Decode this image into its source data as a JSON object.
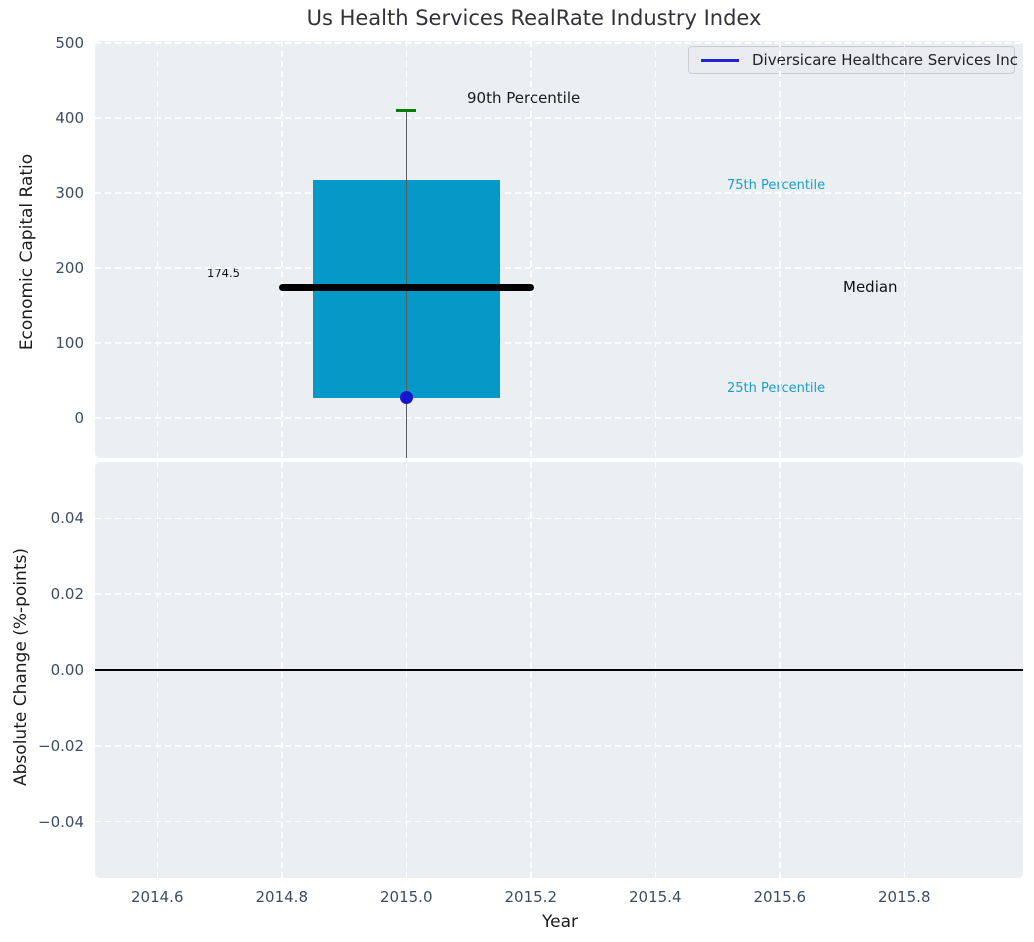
{
  "title": "Us Health Services RealRate Industry Index",
  "legend": {
    "label": "Diversicare Healthcare Services Inc"
  },
  "axes": {
    "top_ylabel": "Economic Capital Ratio",
    "bottom_ylabel": "Absolute Change (%-points)",
    "xlabel": "Year"
  },
  "annotations": {
    "p90": "90th Percentile",
    "p75": "75th Percentile",
    "p25": "25th Percentile",
    "median": "Median",
    "median_value": "174.5"
  },
  "colors": {
    "plot_bg": "#eceff1",
    "grid": "#ffffff",
    "tick_label": "#3d4c63",
    "box_fill": "#0599c8",
    "median_line": "#000000",
    "whisker": "#5c5c5c",
    "cap_90th": "#007d00",
    "company_dot": "#1515d0",
    "legend_line": "#2323d6",
    "percentile_text": "#18a0cc",
    "zero_line": "#000000"
  },
  "chart_data": {
    "type": "boxplot",
    "title": "Us Health Services RealRate Industry Index",
    "xlabel": "Year",
    "xlim": [
      2014.5,
      2015.99
    ],
    "xticks": [
      2014.6,
      2014.8,
      2015.0,
      2015.2,
      2015.4,
      2015.6,
      2015.8
    ],
    "xtick_labels": [
      "2014.6",
      "2014.8",
      "2015.0",
      "2015.2",
      "2015.4",
      "2015.6",
      "2015.8"
    ],
    "grid": "white dashed, both axes, both subplots",
    "legend_position": "upper right",
    "legend_entries": [
      "Diversicare Healthcare Services Inc"
    ],
    "subplots": [
      {
        "ylabel": "Economic Capital Ratio",
        "ylim": [
          -53,
          503
        ],
        "yticks": [
          0,
          100,
          200,
          300,
          400,
          500
        ],
        "ytick_labels": [
          "0",
          "100",
          "200",
          "300",
          "400",
          "500"
        ],
        "series": [
          {
            "name": "industry-distribution-box",
            "type": "box",
            "x_center": 2015.0,
            "box_x_range": [
              2014.85,
              2015.15
            ],
            "p90": 410,
            "p75": 317,
            "median": 174.5,
            "p25": 27,
            "median_line_x_range": [
              2014.795,
              2015.205
            ],
            "whisker_low_value": -53,
            "whisker_low_clipped": true,
            "annotations": [
              "90th Percentile",
              "75th Percentile",
              "Median",
              "25th Percentile",
              "174.5"
            ]
          },
          {
            "name": "Diversicare Healthcare Services Inc",
            "type": "point",
            "x": 2015.0,
            "y": 27
          }
        ]
      },
      {
        "ylabel": "Absolute Change (%-points)",
        "ylim": [
          -0.055,
          0.055
        ],
        "yticks": [
          0.04,
          0.02,
          0.0,
          -0.02,
          -0.04
        ],
        "ytick_labels": [
          "0.04",
          "0.02",
          "0.00",
          "−0.02",
          "−0.04"
        ],
        "zero_line": 0.0,
        "series": []
      }
    ]
  }
}
